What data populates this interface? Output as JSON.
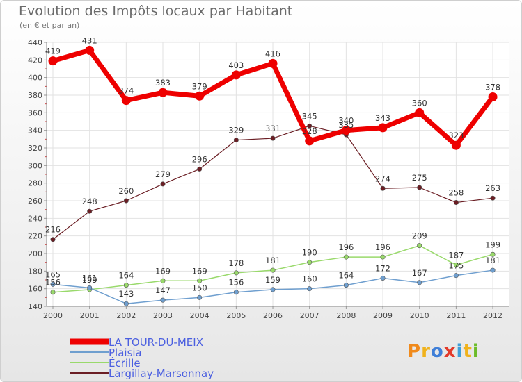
{
  "title": "Evolution des Impôts locaux par Habitant",
  "subtitle": "(en € et par an)",
  "logo": {
    "text": "Proxiti",
    "colors": [
      "#f08a1c",
      "#f0b21c",
      "#3f7fd8",
      "#e23a2a",
      "#3f9fd8",
      "#f0b21c",
      "#6cbc2a"
    ]
  },
  "chart_data": {
    "type": "line",
    "x": [
      "2000",
      "2001",
      "2002",
      "2003",
      "2004",
      "2005",
      "2006",
      "2007",
      "2008",
      "2009",
      "2010",
      "2011",
      "2012"
    ],
    "ylim": [
      140,
      440
    ],
    "yticks": [
      140,
      160,
      180,
      200,
      220,
      240,
      260,
      280,
      300,
      320,
      340,
      360,
      380,
      400,
      420,
      440
    ],
    "grid": true,
    "legend_position": "bottom-left",
    "series": [
      {
        "name": "Largillay-Marsonnay",
        "color": "#6b1e24",
        "values": [
          216,
          248,
          260,
          279,
          296,
          329,
          331,
          345,
          335,
          274,
          275,
          258,
          263
        ]
      },
      {
        "name": "Écrille",
        "color": "#99d96b",
        "values": [
          156,
          159,
          164,
          169,
          169,
          178,
          181,
          190,
          196,
          196,
          209,
          187,
          199
        ]
      },
      {
        "name": "Plaisia",
        "color": "#6f9fcf",
        "values": [
          165,
          161,
          143,
          147,
          150,
          156,
          159,
          160,
          164,
          172,
          167,
          175,
          181
        ]
      },
      {
        "name": "LA TOUR-DU-MEIX",
        "color": "#ee0000",
        "values": [
          419,
          431,
          374,
          383,
          379,
          403,
          416,
          328,
          340,
          343,
          360,
          323,
          378
        ]
      }
    ],
    "legend_order": [
      "LA TOUR-DU-MEIX",
      "Plaisia",
      "Écrille",
      "Largillay-Marsonnay"
    ]
  }
}
